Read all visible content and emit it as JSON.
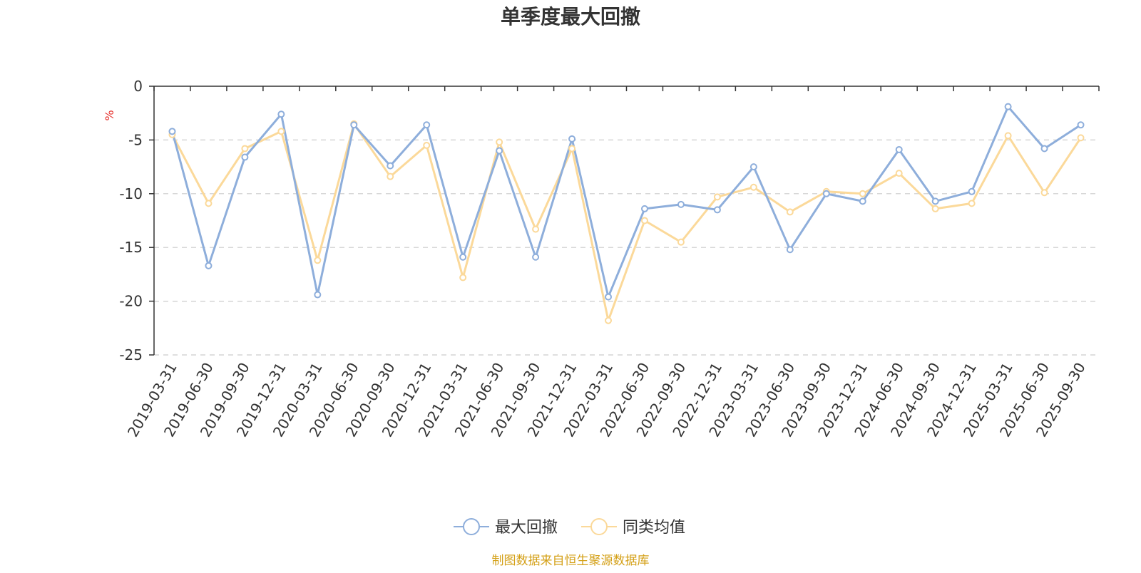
{
  "chart_data": {
    "type": "line",
    "title": "单季度最大回撤",
    "ylabel": "%",
    "ylim": [
      -25,
      0
    ],
    "yticks": [
      0,
      -5,
      -10,
      -15,
      -20,
      -25
    ],
    "grid": true,
    "legend_position": "bottom",
    "categories": [
      "2019-03-31",
      "2019-06-30",
      "2019-09-30",
      "2019-12-31",
      "2020-03-31",
      "2020-06-30",
      "2020-09-30",
      "2020-12-31",
      "2021-03-31",
      "2021-06-30",
      "2021-09-30",
      "2021-12-31",
      "2022-03-31",
      "2022-06-30",
      "2022-09-30",
      "2022-12-31",
      "2023-03-31",
      "2023-06-30",
      "2023-09-30",
      "2023-12-31",
      "2024-06-30",
      "2024-09-30",
      "2024-12-31",
      "2025-03-31",
      "2025-06-30",
      "2025-09-30"
    ],
    "series": [
      {
        "name": "最大回撤",
        "color": "#8eaedb",
        "values": [
          -4.2,
          -16.7,
          -6.6,
          -2.6,
          -19.4,
          -3.6,
          -7.4,
          -3.6,
          -15.9,
          -6.0,
          -15.9,
          -4.9,
          -19.6,
          -11.4,
          -11.0,
          -11.5,
          -7.5,
          -15.2,
          -10.0,
          -10.7,
          -5.9,
          -10.7,
          -9.8,
          -1.9,
          -5.8,
          -3.6
        ]
      },
      {
        "name": "同类均值",
        "color": "#fbd99a",
        "values": [
          -4.5,
          -10.9,
          -5.8,
          -4.2,
          -16.2,
          -3.5,
          -8.4,
          -5.5,
          -17.8,
          -5.2,
          -13.3,
          -5.8,
          -21.8,
          -12.5,
          -14.5,
          -10.3,
          -9.4,
          -11.7,
          -9.8,
          -10.0,
          -8.1,
          -11.4,
          -10.9,
          -4.6,
          -9.9,
          -4.8
        ]
      }
    ]
  },
  "source_text": "制图数据来自恒生聚源数据库"
}
